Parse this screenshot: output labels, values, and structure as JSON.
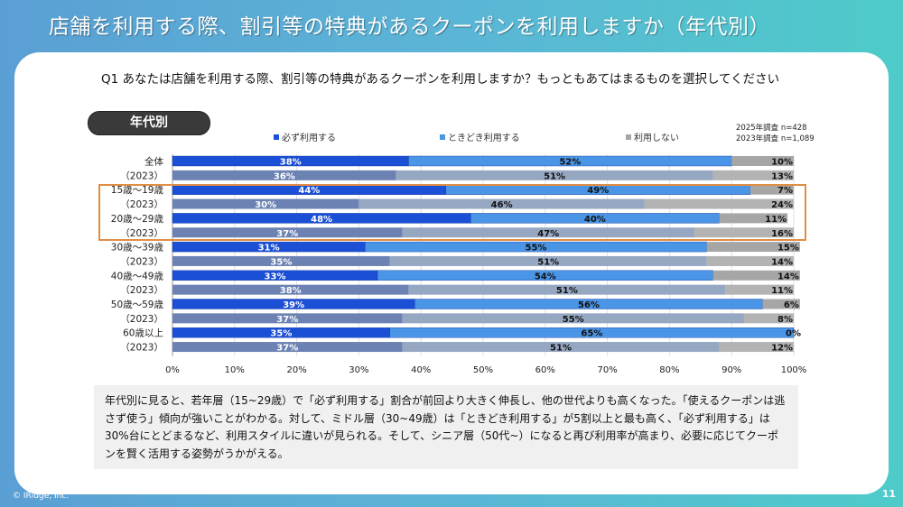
{
  "page": {
    "title": "店舗を利用する際、割引等の特典があるクーポンを利用しますか（年代別）",
    "question": "Q1 あなたは店舗を利用する際、割引等の特典があるクーポンを利用しますか？もっともあてはまるものを選択してください",
    "segment_pill": "年代別",
    "sample_2025": "2025年調査 n=428",
    "sample_2023": "2023年調査 n=1,089",
    "comment": "年代別に見ると、若年層（15~29歳）で「必ず利用する」割合が前回より大きく伸長し、他の世代よりも高くなった。「使えるクーポンは逃さず使う」傾向が強いことがわかる。対して、ミドル層（30~49歳）は「ときどき利用する」が5割以上と最も高く、「必ず利用する」は30%台にとどまるなど、利用スタイルに違いが見られる。そして、シニア層（50代~）になると再び利用率が高まり、必要に応じてクーポンを賢く活用する姿勢がうかがえる。",
    "copyright": "© IRidge, Inc.",
    "page_number": "11"
  },
  "colors": {
    "always_2025": "#1a4fd6",
    "sometimes_2025": "#4a95e6",
    "never_2025": "#a6a6a6",
    "always_2023": "#6c82b3",
    "sometimes_2023": "#96a7c2",
    "never_2023": "#b3b3b3",
    "highlight": "#e08e45"
  },
  "chart_data": {
    "type": "bar",
    "orientation": "horizontal-stacked-100",
    "title": "",
    "xlabel": "",
    "ylabel": "",
    "xlim": [
      0,
      100
    ],
    "xticks": [
      "0%",
      "10%",
      "20%",
      "30%",
      "40%",
      "50%",
      "60%",
      "70%",
      "80%",
      "90%",
      "100%"
    ],
    "grid": true,
    "legend_position": "top",
    "legend": [
      "必ず利用する",
      "ときどき利用する",
      "利用しない"
    ],
    "highlighted_categories": [
      "15歳～19歳",
      "(2023)",
      "20歳～29歳",
      "(2023)"
    ],
    "categories": [
      {
        "label": "全体",
        "year": "2025"
      },
      {
        "label": "（2023）",
        "year": "2023"
      },
      {
        "label": "15歳～19歳",
        "year": "2025"
      },
      {
        "label": "（2023）",
        "year": "2023"
      },
      {
        "label": "20歳～29歳",
        "year": "2025"
      },
      {
        "label": "（2023）",
        "year": "2023"
      },
      {
        "label": "30歳～39歳",
        "year": "2025"
      },
      {
        "label": "（2023）",
        "year": "2023"
      },
      {
        "label": "40歳～49歳",
        "year": "2025"
      },
      {
        "label": "（2023）",
        "year": "2023"
      },
      {
        "label": "50歳～59歳",
        "year": "2025"
      },
      {
        "label": "（2023）",
        "year": "2023"
      },
      {
        "label": "60歳以上",
        "year": "2025"
      },
      {
        "label": "（2023）",
        "year": "2023"
      }
    ],
    "series": [
      {
        "name": "必ず利用する",
        "values": [
          38,
          36,
          44,
          30,
          48,
          37,
          31,
          35,
          33,
          38,
          39,
          37,
          35,
          37
        ]
      },
      {
        "name": "ときどき利用する",
        "values": [
          52,
          51,
          49,
          46,
          40,
          47,
          55,
          51,
          54,
          51,
          56,
          55,
          65,
          51
        ]
      },
      {
        "name": "利用しない",
        "values": [
          10,
          13,
          7,
          24,
          11,
          16,
          15,
          14,
          14,
          11,
          6,
          8,
          0,
          12
        ]
      }
    ]
  }
}
